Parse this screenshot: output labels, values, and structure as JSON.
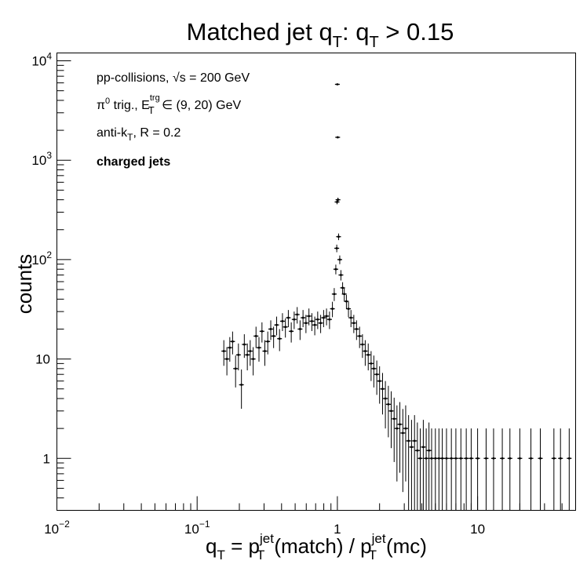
{
  "chart_data": {
    "type": "scatter",
    "title": {
      "main": "Matched jet q",
      "sub1": "T",
      "mid": ": q",
      "sub2": "T",
      "tail": " > 0.15"
    },
    "xlabel": {
      "q": "q",
      "t1": "T",
      "eq": " = p",
      "sup1": "jet",
      "t2": "T",
      "match": "(match) / p",
      "sup2": "jet",
      "t3": "T",
      "mc": "(mc)"
    },
    "ylabel": "counts",
    "xscale": "log",
    "yscale": "log",
    "xlim": [
      0.01,
      50
    ],
    "ylim": [
      0.3,
      12000
    ],
    "x_ticks": [
      {
        "value": 0.01,
        "base": "10",
        "exp": "−2"
      },
      {
        "value": 0.1,
        "base": "10",
        "exp": "−1"
      },
      {
        "value": 1,
        "base": "1",
        "exp": ""
      },
      {
        "value": 10,
        "base": "10",
        "exp": ""
      }
    ],
    "y_ticks": [
      {
        "value": 1,
        "base": "1",
        "exp": ""
      },
      {
        "value": 10,
        "base": "10",
        "exp": ""
      },
      {
        "value": 100,
        "base": "10",
        "exp": "2"
      },
      {
        "value": 1000,
        "base": "10",
        "exp": "3"
      },
      {
        "value": 10000,
        "base": "10",
        "exp": "4"
      }
    ],
    "annotations": {
      "line1": {
        "a": "pp-collisions, ",
        "root": "√s",
        "b": " = 200 GeV"
      },
      "line2": {
        "pi": "π",
        "zero": "0",
        "a": " trig., E",
        "sup": "trg",
        "sub": "T",
        "b": " ∈ (9, 20) GeV"
      },
      "line3": {
        "a": "anti-k",
        "sub": "T",
        "b": ", R = 0.2"
      },
      "line4": "charged jets"
    },
    "grid": false,
    "legend": "none",
    "points": [
      [
        0.155,
        12
      ],
      [
        0.163,
        10
      ],
      [
        0.171,
        13
      ],
      [
        0.179,
        15
      ],
      [
        0.188,
        8
      ],
      [
        0.197,
        11
      ],
      [
        0.207,
        5.5
      ],
      [
        0.217,
        14
      ],
      [
        0.228,
        11
      ],
      [
        0.239,
        12
      ],
      [
        0.251,
        10
      ],
      [
        0.263,
        17
      ],
      [
        0.276,
        13
      ],
      [
        0.29,
        19
      ],
      [
        0.304,
        12
      ],
      [
        0.319,
        15
      ],
      [
        0.335,
        20
      ],
      [
        0.351,
        17
      ],
      [
        0.369,
        22
      ],
      [
        0.387,
        16
      ],
      [
        0.406,
        24
      ],
      [
        0.426,
        21
      ],
      [
        0.447,
        26
      ],
      [
        0.469,
        19
      ],
      [
        0.492,
        25
      ],
      [
        0.517,
        28
      ],
      [
        0.542,
        20
      ],
      [
        0.569,
        26
      ],
      [
        0.597,
        23
      ],
      [
        0.627,
        27
      ],
      [
        0.658,
        24
      ],
      [
        0.69,
        22
      ],
      [
        0.724,
        25
      ],
      [
        0.76,
        23
      ],
      [
        0.798,
        26
      ],
      [
        0.837,
        27
      ],
      [
        0.879,
        25
      ],
      [
        0.922,
        32
      ],
      [
        0.95,
        45
      ],
      [
        0.975,
        80
      ],
      [
        0.99,
        130
      ],
      [
        0.995,
        380
      ],
      [
        1.0,
        5800
      ],
      [
        1.005,
        1700
      ],
      [
        1.01,
        400
      ],
      [
        1.02,
        170
      ],
      [
        1.04,
        100
      ],
      [
        1.06,
        70
      ],
      [
        1.09,
        52
      ],
      [
        1.12,
        45
      ],
      [
        1.16,
        38
      ],
      [
        1.2,
        32
      ],
      [
        1.25,
        26
      ],
      [
        1.31,
        23
      ],
      [
        1.37,
        20
      ],
      [
        1.44,
        17
      ],
      [
        1.51,
        14
      ],
      [
        1.58,
        12
      ],
      [
        1.66,
        11
      ],
      [
        1.74,
        9
      ],
      [
        1.82,
        8
      ],
      [
        1.91,
        7
      ],
      [
        2.0,
        6
      ],
      [
        2.1,
        5
      ],
      [
        2.2,
        4
      ],
      [
        2.31,
        3.5
      ],
      [
        2.42,
        3
      ],
      [
        2.54,
        2.5
      ],
      [
        2.66,
        2
      ],
      [
        2.79,
        2.2
      ],
      [
        2.93,
        1.8
      ],
      [
        3.07,
        2
      ],
      [
        3.22,
        1.5
      ],
      [
        3.38,
        1.3
      ],
      [
        3.55,
        1.5
      ],
      [
        3.72,
        1.2
      ],
      [
        3.9,
        1
      ],
      [
        4.1,
        1.3
      ],
      [
        4.3,
        1
      ],
      [
        4.5,
        1.2
      ],
      [
        4.7,
        1
      ],
      [
        5.0,
        1
      ],
      [
        5.3,
        1
      ],
      [
        5.6,
        1
      ],
      [
        6.0,
        1
      ],
      [
        6.5,
        1
      ],
      [
        7.0,
        1
      ],
      [
        7.6,
        1
      ],
      [
        8.3,
        1
      ],
      [
        9.0,
        1
      ],
      [
        10.0,
        1
      ],
      [
        11.5,
        1
      ],
      [
        13.0,
        1
      ],
      [
        15.0,
        1
      ],
      [
        17.0,
        1
      ],
      [
        20.0,
        1
      ],
      [
        24.0,
        1
      ],
      [
        28.0,
        1
      ],
      [
        35.0,
        1
      ],
      [
        39.0,
        1
      ],
      [
        45.0,
        1
      ]
    ]
  }
}
